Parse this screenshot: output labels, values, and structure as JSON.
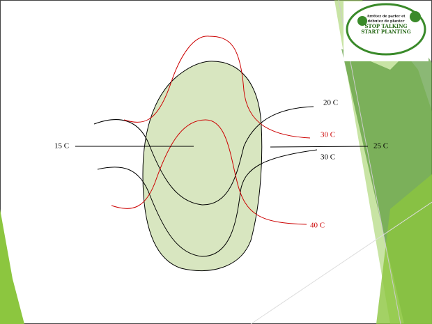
{
  "labels": {
    "t15": "15 C",
    "t20": "20 C",
    "t30red": "30 C",
    "t25": "25 C",
    "t30black": "30 C",
    "t40": "40 C"
  },
  "logo": {
    "line1": "Arrêtez de parler et",
    "line2": "débutez de planter",
    "line3": "STOP TALKING",
    "line4": "START PLANTING"
  }
}
